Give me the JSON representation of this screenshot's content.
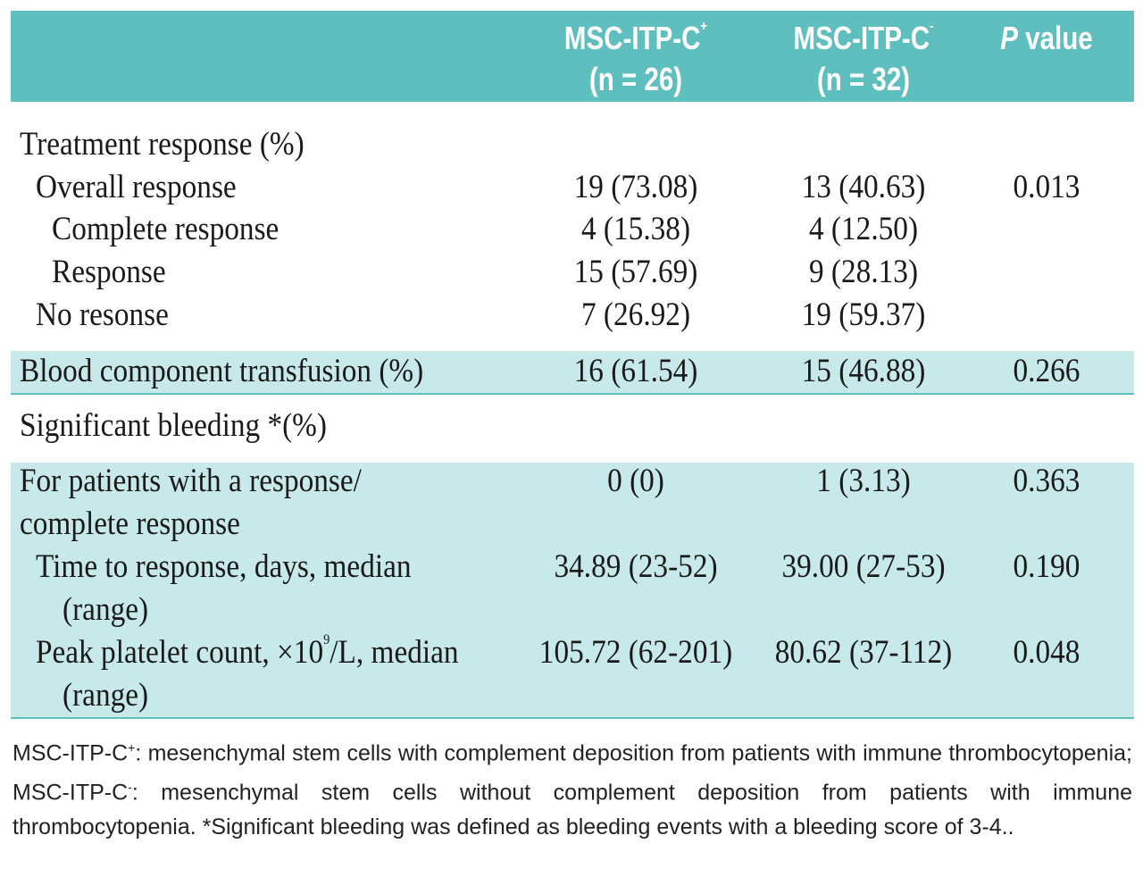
{
  "header": {
    "col1_line1": "MSC-ITP-C",
    "col1_sup": "+",
    "col1_line2": "(n = 26)",
    "col2_line1": "MSC-ITP-C",
    "col2_sup": "-",
    "col2_line2": "(n = 32)",
    "col3_italic": "P",
    "col3_rest": " value"
  },
  "rows": {
    "treatment": {
      "label": "Treatment response (%)"
    },
    "overall": {
      "label": "Overall response",
      "v1": "19 (73.08)",
      "v2": "13 (40.63)",
      "p": "0.013"
    },
    "complete": {
      "label": "Complete response",
      "v1": "4 (15.38)",
      "v2": "4 (12.50)"
    },
    "response": {
      "label": "Response",
      "v1": "15 (57.69)",
      "v2": "9 (28.13)"
    },
    "noresp": {
      "label": "No resonse",
      "v1": "7 (26.92)",
      "v2": "19 (59.37)"
    },
    "transfusion": {
      "label": "Blood component transfusion (%)",
      "v1": "16 (61.54)",
      "v2": "15 (46.88)",
      "p": "0.266"
    },
    "bleeding": {
      "label": "Significant bleeding *(%)"
    },
    "patients": {
      "label_1": "For patients with a response/",
      "label_2": "complete response",
      "v1": "0 (0)",
      "v2": "1 (3.13)",
      "p": "0.363"
    },
    "time": {
      "label_1": "Time to response, days, median",
      "label_2": "(range)",
      "v1": "34.89 (23-52)",
      "v2": "39.00 (27-53)",
      "p": "0.190"
    },
    "peak": {
      "label_1a": "Peak platelet count, ×10",
      "label_sup": "9",
      "label_1b": "/L, median",
      "label_2": "(range)",
      "v1": "105.72 (62-201)",
      "v2": "80.62 (37-112)",
      "p": "0.048"
    }
  },
  "footnote": {
    "t1": "MSC-ITP-C",
    "s1": "+",
    "t2": ": mesenchymal stem cells with complement deposition from patients with immune thrombocytopenia;   MSC-ITP-C",
    "s2": "-",
    "t3": ": mesenchymal stem cells without complement deposition from patients with immune thrombocytopenia. *Significant bleeding was defined as bleeding events with a bleeding score of 3-4.."
  }
}
